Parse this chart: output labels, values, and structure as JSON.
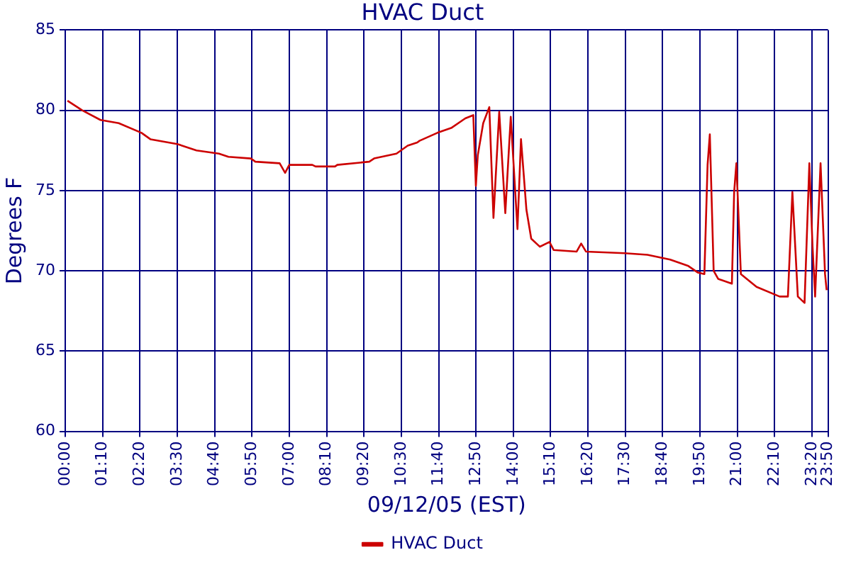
{
  "chart_data": {
    "type": "line",
    "title": "HVAC Duct",
    "xlabel": "09/12/05 (EST)",
    "ylabel": "Degrees F",
    "xlim": [
      0,
      23.8333
    ],
    "ylim": [
      60,
      85
    ],
    "xticks": [
      {
        "value": 0,
        "label": "00:00"
      },
      {
        "value": 1.1667,
        "label": "01:10"
      },
      {
        "value": 2.3333,
        "label": "02:20"
      },
      {
        "value": 3.5,
        "label": "03:30"
      },
      {
        "value": 4.6667,
        "label": "04:40"
      },
      {
        "value": 5.8333,
        "label": "05:50"
      },
      {
        "value": 7,
        "label": "07:00"
      },
      {
        "value": 8.1667,
        "label": "08:10"
      },
      {
        "value": 9.3333,
        "label": "09:20"
      },
      {
        "value": 10.5,
        "label": "10:30"
      },
      {
        "value": 11.6667,
        "label": "11:40"
      },
      {
        "value": 12.8333,
        "label": "12:50"
      },
      {
        "value": 14,
        "label": "14:00"
      },
      {
        "value": 15.1667,
        "label": "15:10"
      },
      {
        "value": 16.3333,
        "label": "16:20"
      },
      {
        "value": 17.5,
        "label": "17:30"
      },
      {
        "value": 18.6667,
        "label": "18:40"
      },
      {
        "value": 19.8333,
        "label": "19:50"
      },
      {
        "value": 21,
        "label": "21:00"
      },
      {
        "value": 22.1667,
        "label": "22:10"
      },
      {
        "value": 23.3333,
        "label": "23:20"
      },
      {
        "value": 23.8333,
        "label": "23:50"
      }
    ],
    "yticks": [
      60,
      65,
      70,
      75,
      80,
      85
    ],
    "grid": true,
    "legend": "bottom",
    "marker": "none",
    "line_style": "solid",
    "series": [
      {
        "name": "HVAC Duct",
        "color": "#cc0000",
        "x": [
          0.07,
          0.53,
          1.1,
          1.67,
          2.38,
          2.66,
          3.5,
          4.1,
          4.8,
          5.1,
          5.8,
          5.94,
          6.7,
          6.87,
          7.0,
          7.72,
          7.82,
          8.43,
          8.5,
          9.5,
          9.65,
          10.35,
          10.7,
          11.0,
          11.07,
          11.63,
          12.06,
          12.5,
          12.75,
          12.83,
          12.89,
          13.06,
          13.25,
          13.38,
          13.56,
          13.75,
          13.92,
          14.13,
          14.24,
          14.41,
          14.56,
          14.83,
          15.13,
          15.26,
          15.98,
          16.12,
          16.27,
          17.48,
          18.19,
          18.9,
          19.47,
          19.76,
          19.97,
          20.07,
          20.14,
          20.26,
          20.4,
          20.83,
          20.9,
          20.97,
          21.11,
          21.6,
          22.32,
          22.58,
          22.72,
          22.89,
          23.1,
          23.25,
          23.35,
          23.43,
          23.6,
          23.74,
          23.79
        ],
        "values": [
          80.6,
          80.0,
          79.4,
          79.2,
          78.6,
          78.2,
          77.9,
          77.5,
          77.3,
          77.1,
          77.0,
          76.8,
          76.7,
          76.1,
          76.6,
          76.6,
          76.5,
          76.5,
          76.6,
          76.8,
          77.0,
          77.3,
          77.8,
          78.0,
          78.1,
          78.6,
          78.9,
          79.5,
          79.7,
          75.3,
          77.2,
          79.2,
          80.2,
          73.3,
          79.9,
          73.6,
          79.6,
          72.6,
          78.2,
          73.8,
          72.0,
          71.5,
          71.8,
          71.3,
          71.2,
          71.7,
          71.2,
          71.1,
          71.0,
          70.7,
          70.3,
          69.9,
          69.8,
          76.6,
          78.5,
          70.0,
          69.5,
          69.2,
          74.9,
          76.7,
          69.8,
          69.0,
          68.4,
          68.4,
          74.9,
          68.4,
          68.0,
          76.7,
          71.5,
          68.4,
          76.7,
          69.8,
          68.8
        ]
      }
    ]
  }
}
